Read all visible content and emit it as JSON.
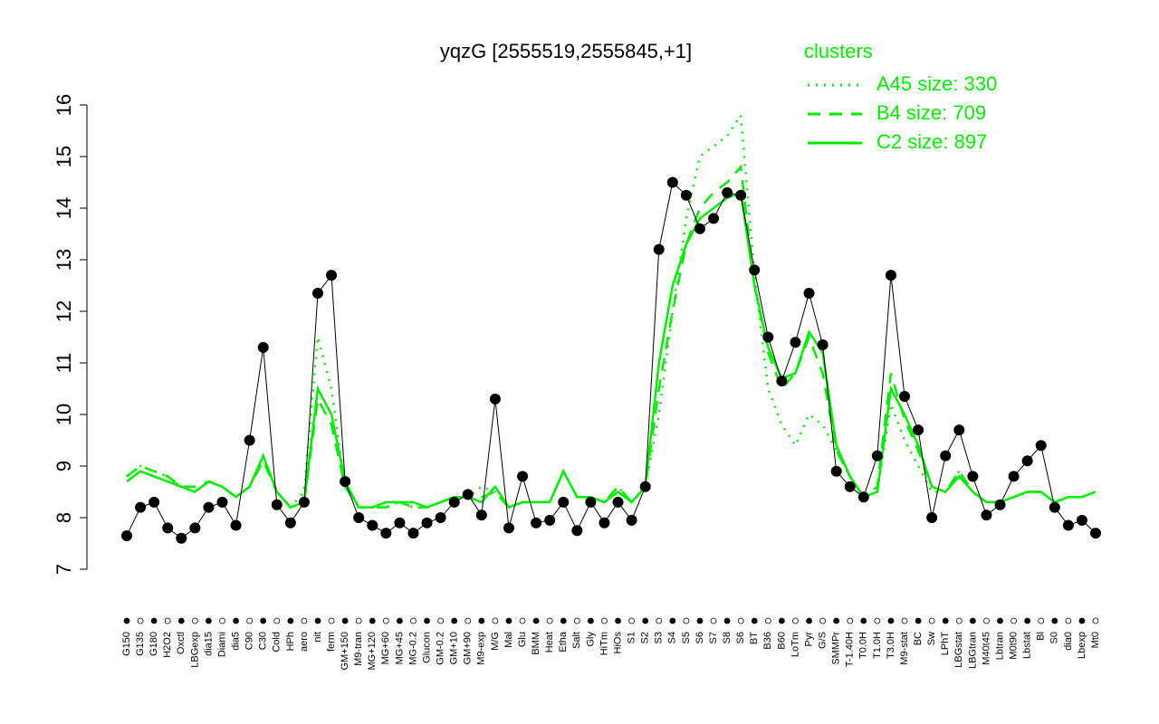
{
  "chart_data": {
    "type": "line",
    "title": "yqzG [2555519,2555845,+1]",
    "legend_title": "clusters",
    "legend": "top-right",
    "categories": [
      "G150",
      "G135",
      "G180",
      "H2O2",
      "Oxctl",
      "LBGexp",
      "dia15",
      "Diami",
      "dia5",
      "C90",
      "C30",
      "Cold",
      "HPh",
      "aero",
      "nit",
      "ferm",
      "GM+150",
      "M9-tran",
      "MG+120",
      "MG+60",
      "MG+45",
      "MG-0.2",
      "Glucon",
      "GM-0.2",
      "GM+10",
      "GM+90",
      "M9-exp",
      "M/G",
      "Mal",
      "Glu",
      "BMM",
      "Heat",
      "Etha",
      "Salt",
      "Gly",
      "HiTm",
      "HiOs",
      "S1",
      "S2",
      "S3",
      "S4",
      "S5",
      "S6",
      "S7",
      "S8",
      "S6",
      "BT",
      "B36",
      "B60",
      "LoTm",
      "Pyr",
      "G/S",
      "SMMPr",
      "T-1.40H",
      "T0.0H",
      "T1.0H",
      "T3.0H",
      "M9-stat",
      "BC",
      "Sw",
      "LPhT",
      "LBGstat",
      "LBGtran",
      "M40t45",
      "Lbtran",
      "M0t90",
      "Lbstat",
      "Bl",
      "S0",
      "dia0",
      "Lbexp",
      "Mt0"
    ],
    "values": [
      7.65,
      8.2,
      8.3,
      7.8,
      7.6,
      7.8,
      8.2,
      8.3,
      7.85,
      9.5,
      11.3,
      8.25,
      7.9,
      8.3,
      12.35,
      12.7,
      8.7,
      8.0,
      7.85,
      7.7,
      7.9,
      7.7,
      7.9,
      8.0,
      8.3,
      8.45,
      8.05,
      10.3,
      7.8,
      8.8,
      7.9,
      7.95,
      8.3,
      7.75,
      8.3,
      7.9,
      8.3,
      7.95,
      8.6,
      13.2,
      14.5,
      14.25,
      13.6,
      13.8,
      14.3,
      14.25,
      12.8,
      11.5,
      10.65,
      11.4,
      12.35,
      11.35,
      8.9,
      8.6,
      8.4,
      9.2,
      12.7,
      10.35,
      9.7,
      8.0,
      9.2,
      9.7,
      8.8,
      8.05,
      8.25,
      8.8,
      9.1,
      9.4,
      8.2,
      7.85,
      7.95,
      7.7
    ],
    "color": "#000000",
    "series": [
      {
        "name": "A45 size: 330",
        "color": "#00ee00",
        "dash": "dotted",
        "values": [
          8.8,
          9.0,
          8.9,
          8.8,
          8.6,
          8.5,
          8.7,
          8.6,
          8.4,
          8.6,
          9.2,
          8.5,
          8.2,
          8.5,
          11.5,
          10.5,
          8.6,
          8.2,
          8.2,
          8.2,
          8.3,
          8.2,
          8.2,
          8.3,
          8.4,
          8.4,
          8.6,
          8.5,
          8.2,
          8.3,
          8.3,
          8.3,
          8.9,
          8.4,
          8.4,
          8.3,
          8.6,
          8.3,
          8.6,
          10.0,
          12.0,
          13.8,
          15.0,
          15.2,
          15.4,
          15.8,
          12.7,
          10.5,
          9.8,
          9.4,
          10.0,
          9.8,
          9.3,
          8.8,
          8.4,
          8.5,
          10.2,
          9.5,
          9.0,
          8.5,
          8.5,
          8.9,
          8.5,
          8.3,
          8.3,
          8.4,
          8.5,
          8.5,
          8.3,
          8.4,
          8.4,
          8.5
        ]
      },
      {
        "name": "B4 size: 709",
        "color": "#00ee00",
        "dash": "dashed",
        "values": [
          8.8,
          9.0,
          8.9,
          8.8,
          8.6,
          8.6,
          8.7,
          8.6,
          8.4,
          8.6,
          9.1,
          8.5,
          8.2,
          8.3,
          10.3,
          9.8,
          8.6,
          8.2,
          8.2,
          8.2,
          8.3,
          8.2,
          8.2,
          8.3,
          8.4,
          8.4,
          8.4,
          8.5,
          8.2,
          8.3,
          8.3,
          8.3,
          8.9,
          8.4,
          8.4,
          8.3,
          8.6,
          8.3,
          8.6,
          10.5,
          12.0,
          13.3,
          14.0,
          14.3,
          14.5,
          14.8,
          12.5,
          11.2,
          10.5,
          10.8,
          11.5,
          10.8,
          9.3,
          8.8,
          8.4,
          8.6,
          10.8,
          9.9,
          9.3,
          8.6,
          8.5,
          8.9,
          8.5,
          8.3,
          8.3,
          8.4,
          8.5,
          8.5,
          8.3,
          8.4,
          8.4,
          8.5
        ]
      },
      {
        "name": "C2 size: 897",
        "color": "#00ee00",
        "dash": "solid",
        "values": [
          8.7,
          8.9,
          8.8,
          8.7,
          8.6,
          8.5,
          8.7,
          8.6,
          8.4,
          8.6,
          9.2,
          8.5,
          8.2,
          8.3,
          10.5,
          10.0,
          8.7,
          8.2,
          8.2,
          8.3,
          8.3,
          8.3,
          8.2,
          8.3,
          8.4,
          8.4,
          8.3,
          8.6,
          8.2,
          8.3,
          8.3,
          8.3,
          8.9,
          8.4,
          8.4,
          8.3,
          8.5,
          8.3,
          8.6,
          11.0,
          12.5,
          13.3,
          13.8,
          14.0,
          14.2,
          14.3,
          12.5,
          11.3,
          10.7,
          10.8,
          11.6,
          11.2,
          9.4,
          8.8,
          8.4,
          8.5,
          10.5,
          10.0,
          9.4,
          8.6,
          8.5,
          8.8,
          8.5,
          8.3,
          8.3,
          8.4,
          8.5,
          8.5,
          8.3,
          8.4,
          8.4,
          8.5
        ]
      }
    ],
    "ylim": [
      7,
      16
    ],
    "yticks": [
      7,
      8,
      9,
      10,
      11,
      12,
      13,
      14,
      15,
      16
    ]
  }
}
